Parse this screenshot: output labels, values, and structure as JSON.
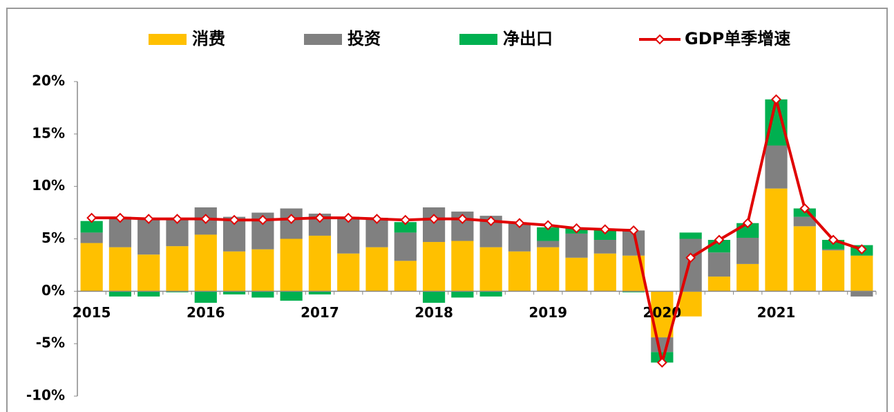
{
  "chart_data": {
    "type": "bar",
    "categories": [
      "2015",
      null,
      null,
      null,
      "2016",
      null,
      null,
      null,
      "2017",
      null,
      null,
      null,
      "2018",
      null,
      null,
      null,
      "2019",
      null,
      null,
      null,
      "2020",
      null,
      null,
      null,
      "2021",
      null,
      null,
      null
    ],
    "series": [
      {
        "name": "消费",
        "color": "#ffc000",
        "values": [
          4.6,
          4.2,
          3.5,
          4.3,
          5.4,
          3.8,
          4.0,
          5.0,
          5.3,
          3.6,
          4.2,
          2.9,
          4.7,
          4.8,
          4.2,
          3.8,
          4.2,
          3.2,
          3.6,
          3.4,
          -4.4,
          -2.4,
          1.4,
          2.6,
          9.8,
          6.2,
          3.9,
          3.4
        ]
      },
      {
        "name": "投资",
        "color": "#808080",
        "values": [
          1.0,
          2.9,
          3.5,
          2.6,
          2.6,
          3.3,
          3.5,
          2.9,
          2.1,
          3.4,
          2.7,
          2.7,
          3.3,
          2.8,
          3.0,
          2.7,
          0.6,
          2.3,
          1.3,
          2.4,
          -1.4,
          5.0,
          2.3,
          2.5,
          4.1,
          0.9,
          0.1,
          -0.5
        ]
      },
      {
        "name": "净出口",
        "color": "#00b050",
        "values": [
          1.1,
          -0.5,
          -0.5,
          -0.1,
          -1.1,
          -0.3,
          -0.6,
          -0.9,
          -0.3,
          0.1,
          0.1,
          1.0,
          -1.1,
          -0.6,
          -0.5,
          0.0,
          1.3,
          0.5,
          1.0,
          -0.1,
          -1.0,
          0.6,
          1.2,
          1.4,
          4.4,
          0.8,
          0.9,
          1.0
        ]
      },
      {
        "name": "GDP单季增速",
        "color": "#e00000",
        "line": true,
        "values": [
          7.0,
          7.0,
          6.9,
          6.9,
          6.9,
          6.8,
          6.8,
          6.9,
          7.0,
          7.0,
          6.9,
          6.8,
          6.9,
          6.9,
          6.7,
          6.5,
          6.3,
          6.0,
          5.9,
          5.8,
          -6.8,
          3.2,
          4.9,
          6.5,
          18.3,
          7.9,
          4.9,
          4.0
        ]
      }
    ],
    "ylim": [
      -10,
      20
    ],
    "yticks": [
      {
        "value": -10,
        "label": "-10%"
      },
      {
        "value": -5,
        "label": "-5%"
      },
      {
        "value": 0,
        "label": "0%"
      },
      {
        "value": 5,
        "label": "5%"
      },
      {
        "value": 10,
        "label": "10%"
      },
      {
        "value": 15,
        "label": "15%"
      },
      {
        "value": 20,
        "label": "20%"
      }
    ],
    "grid": false,
    "legend": "top"
  }
}
